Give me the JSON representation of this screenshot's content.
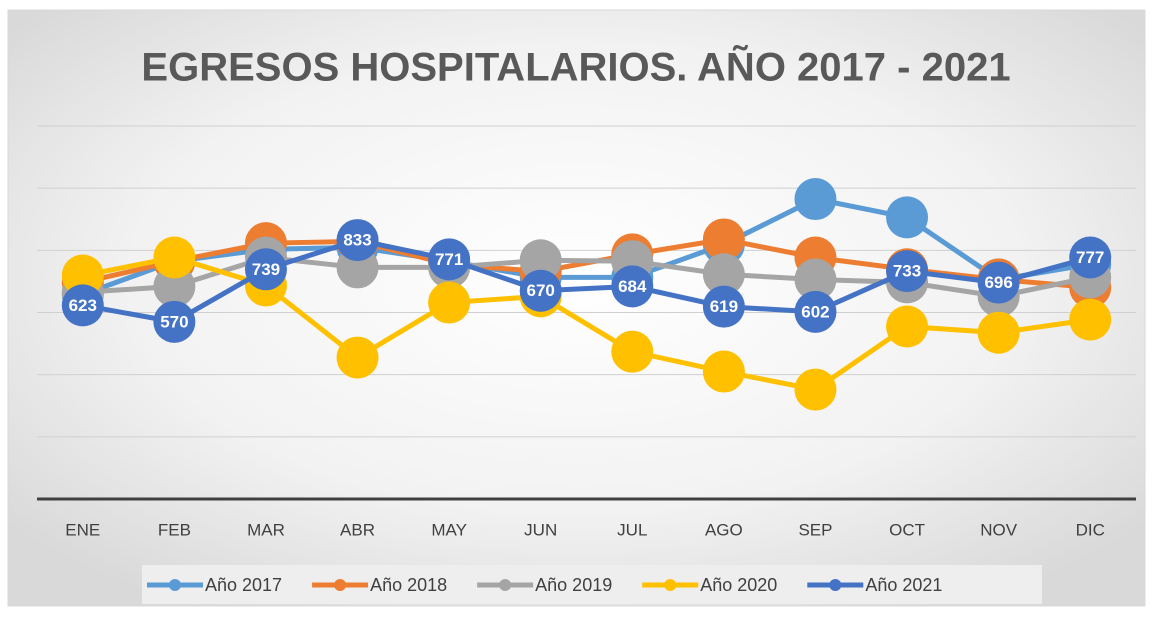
{
  "chart_data": {
    "type": "line",
    "title": "EGRESOS HOSPITALARIOS. AÑO 2017 - 2021",
    "categories": [
      "ENE",
      "FEB",
      "MAR",
      "ABR",
      "MAY",
      "JUN",
      "JUL",
      "AGO",
      "SEP",
      "OCT",
      "NOV",
      "DIC"
    ],
    "series": [
      {
        "name": "Año 2017",
        "color": "#5b9bd5",
        "values": [
          658,
          765,
          803,
          810,
          765,
          713,
          713,
          819,
          965,
          906,
          706,
          755
        ]
      },
      {
        "name": "Año 2018",
        "color": "#ed7d31",
        "values": [
          697,
          765,
          823,
          829,
          755,
          732,
          787,
          835,
          777,
          739,
          706,
          681
        ]
      },
      {
        "name": "Año 2019",
        "color": "#a5a5a5",
        "values": [
          665,
          684,
          777,
          745,
          745,
          768,
          765,
          723,
          706,
          697,
          652,
          713
        ]
      },
      {
        "name": "Año 2020",
        "color": "#ffc000",
        "values": [
          719,
          777,
          687,
          455,
          632,
          652,
          474,
          410,
          352,
          555,
          535,
          577
        ]
      },
      {
        "name": "Año 2021",
        "color": "#4472c4",
        "values": [
          623,
          570,
          739,
          833,
          771,
          670,
          684,
          619,
          602,
          733,
          696,
          777
        ],
        "data_labels": true
      }
    ],
    "ylim": [
      0,
      1200
    ],
    "yticks": [
      0,
      200,
      400,
      600,
      800,
      1000,
      1200
    ],
    "grid": true,
    "legend": "bottom"
  }
}
